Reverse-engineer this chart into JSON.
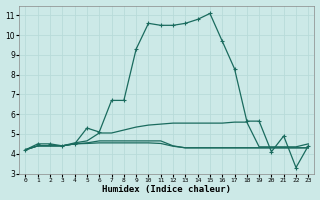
{
  "xlabel": "Humidex (Indice chaleur)",
  "xlim": [
    -0.5,
    23.5
  ],
  "ylim": [
    3,
    11.5
  ],
  "yticks": [
    3,
    4,
    5,
    6,
    7,
    8,
    9,
    10,
    11
  ],
  "xticks": [
    0,
    1,
    2,
    3,
    4,
    5,
    6,
    7,
    8,
    9,
    10,
    11,
    12,
    13,
    14,
    15,
    16,
    17,
    18,
    19,
    20,
    21,
    22,
    23
  ],
  "bg_color": "#cce9e7",
  "line_color": "#1a6b5e",
  "grid_color": "#b8dbd9",
  "lines": [
    {
      "x": [
        0,
        1,
        2,
        3,
        4,
        5,
        6,
        7,
        8,
        9,
        10,
        11,
        12,
        13,
        14,
        15,
        16,
        17,
        18,
        19,
        20,
        21,
        22,
        23
      ],
      "y": [
        4.2,
        4.5,
        4.5,
        4.4,
        4.5,
        5.3,
        5.1,
        6.7,
        6.7,
        9.3,
        10.6,
        10.5,
        10.5,
        10.6,
        10.8,
        11.1,
        9.7,
        8.3,
        5.65,
        5.65,
        4.1,
        4.9,
        3.3,
        4.4
      ],
      "marker": "+"
    },
    {
      "x": [
        0,
        1,
        2,
        3,
        4,
        5,
        6,
        7,
        8,
        9,
        10,
        11,
        12,
        13,
        14,
        15,
        16,
        17,
        18,
        19,
        20,
        21,
        22,
        23
      ],
      "y": [
        4.2,
        4.4,
        4.4,
        4.4,
        4.55,
        4.65,
        5.05,
        5.05,
        5.2,
        5.35,
        5.45,
        5.5,
        5.55,
        5.55,
        5.55,
        5.55,
        5.55,
        5.6,
        5.6,
        4.35,
        4.35,
        4.35,
        4.35,
        4.5
      ],
      "marker": null
    },
    {
      "x": [
        0,
        1,
        2,
        3,
        4,
        5,
        6,
        7,
        8,
        9,
        10,
        11,
        12,
        13,
        14,
        15,
        16,
        17,
        18,
        19,
        20,
        21,
        22,
        23
      ],
      "y": [
        4.2,
        4.4,
        4.4,
        4.4,
        4.5,
        4.55,
        4.65,
        4.65,
        4.65,
        4.65,
        4.65,
        4.65,
        4.4,
        4.3,
        4.3,
        4.3,
        4.3,
        4.3,
        4.3,
        4.3,
        4.3,
        4.3,
        4.3,
        4.3
      ],
      "marker": null
    },
    {
      "x": [
        0,
        1,
        2,
        3,
        4,
        5,
        6,
        7,
        8,
        9,
        10,
        11,
        12,
        13,
        14,
        15,
        16,
        17,
        18,
        19,
        20,
        21,
        22,
        23
      ],
      "y": [
        4.2,
        4.4,
        4.4,
        4.4,
        4.5,
        4.52,
        4.55,
        4.55,
        4.55,
        4.55,
        4.55,
        4.52,
        4.38,
        4.3,
        4.3,
        4.3,
        4.3,
        4.3,
        4.3,
        4.3,
        4.3,
        4.3,
        4.3,
        4.3
      ],
      "marker": null
    }
  ]
}
